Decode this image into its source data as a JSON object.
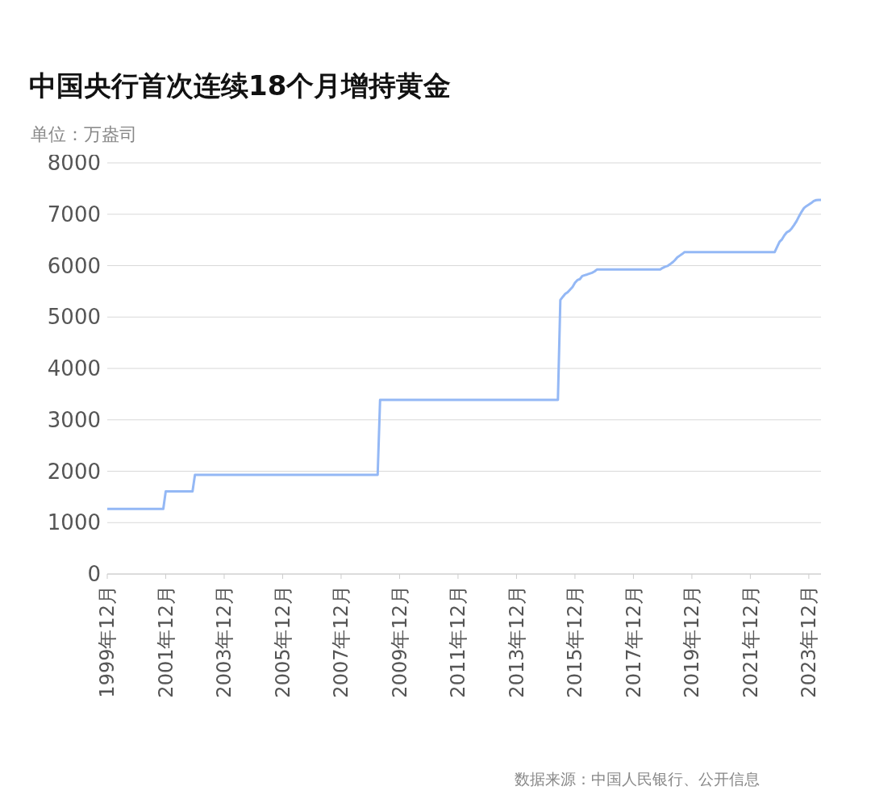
{
  "chart_data": {
    "type": "line",
    "title": "中国央行首次连续18个月增持黄金",
    "ylabel": "单位：万盎司",
    "annotations": [
      "数据来源：中国人民银行、公开信息"
    ],
    "series": [
      {
        "color": "#94b8f5",
        "x": [
          "1999-12",
          "2001-11",
          "2001-12",
          "2002-11",
          "2002-12",
          "2009-03",
          "2009-04",
          "2015-05",
          "2015-06",
          "2015-07",
          "2015-08",
          "2015-09",
          "2015-10",
          "2015-11",
          "2015-12",
          "2016-01",
          "2016-02",
          "2016-03",
          "2016-04",
          "2016-05",
          "2016-06",
          "2016-07",
          "2016-08",
          "2016-09",
          "2018-11",
          "2018-12",
          "2019-01",
          "2019-02",
          "2019-03",
          "2019-04",
          "2019-05",
          "2019-06",
          "2019-07",
          "2019-08",
          "2019-09",
          "2022-10",
          "2022-11",
          "2022-12",
          "2023-01",
          "2023-02",
          "2023-03",
          "2023-04",
          "2023-05",
          "2023-06",
          "2023-07",
          "2023-08",
          "2023-09",
          "2023-10",
          "2023-11",
          "2023-12",
          "2024-01",
          "2024-02",
          "2024-03",
          "2024-04",
          "2024-05"
        ],
        "values": [
          1267,
          1267,
          1608,
          1608,
          1929,
          1929,
          3389,
          3389,
          5331,
          5393,
          5450,
          5483,
          5535,
          5585,
          5666,
          5719,
          5737,
          5799,
          5814,
          5828,
          5846,
          5862,
          5886,
          5924,
          5924,
          5956,
          5979,
          5994,
          6026,
          6062,
          6106,
          6161,
          6194,
          6226,
          6264,
          6264,
          6367,
          6464,
          6512,
          6592,
          6650,
          6676,
          6727,
          6795,
          6869,
          6962,
          7046,
          7120,
          7158,
          7187,
          7219,
          7258,
          7274,
          7280,
          7280
        ]
      }
    ],
    "xlim": [
      "1999-12",
      "2024-05"
    ],
    "xticks": [
      {
        "value": "1999-12",
        "label": "1999年12月"
      },
      {
        "value": "2001-12",
        "label": "2001年12月"
      },
      {
        "value": "2003-12",
        "label": "2003年12月"
      },
      {
        "value": "2005-12",
        "label": "2005年12月"
      },
      {
        "value": "2007-12",
        "label": "2007年12月"
      },
      {
        "value": "2009-12",
        "label": "2009年12月"
      },
      {
        "value": "2011-12",
        "label": "2011年12月"
      },
      {
        "value": "2013-12",
        "label": "2013年12月"
      },
      {
        "value": "2015-12",
        "label": "2015年12月"
      },
      {
        "value": "2017-12",
        "label": "2017年12月"
      },
      {
        "value": "2019-12",
        "label": "2019年12月"
      },
      {
        "value": "2021-12",
        "label": "2021年12月"
      },
      {
        "value": "2023-12",
        "label": "2023年12月"
      }
    ],
    "ylim": [
      0,
      8000
    ],
    "yticks": [
      0,
      1000,
      2000,
      3000,
      4000,
      5000,
      6000,
      7000,
      8000
    ],
    "grid": "y",
    "legend": false,
    "marker": "none",
    "line_style": "solid"
  }
}
